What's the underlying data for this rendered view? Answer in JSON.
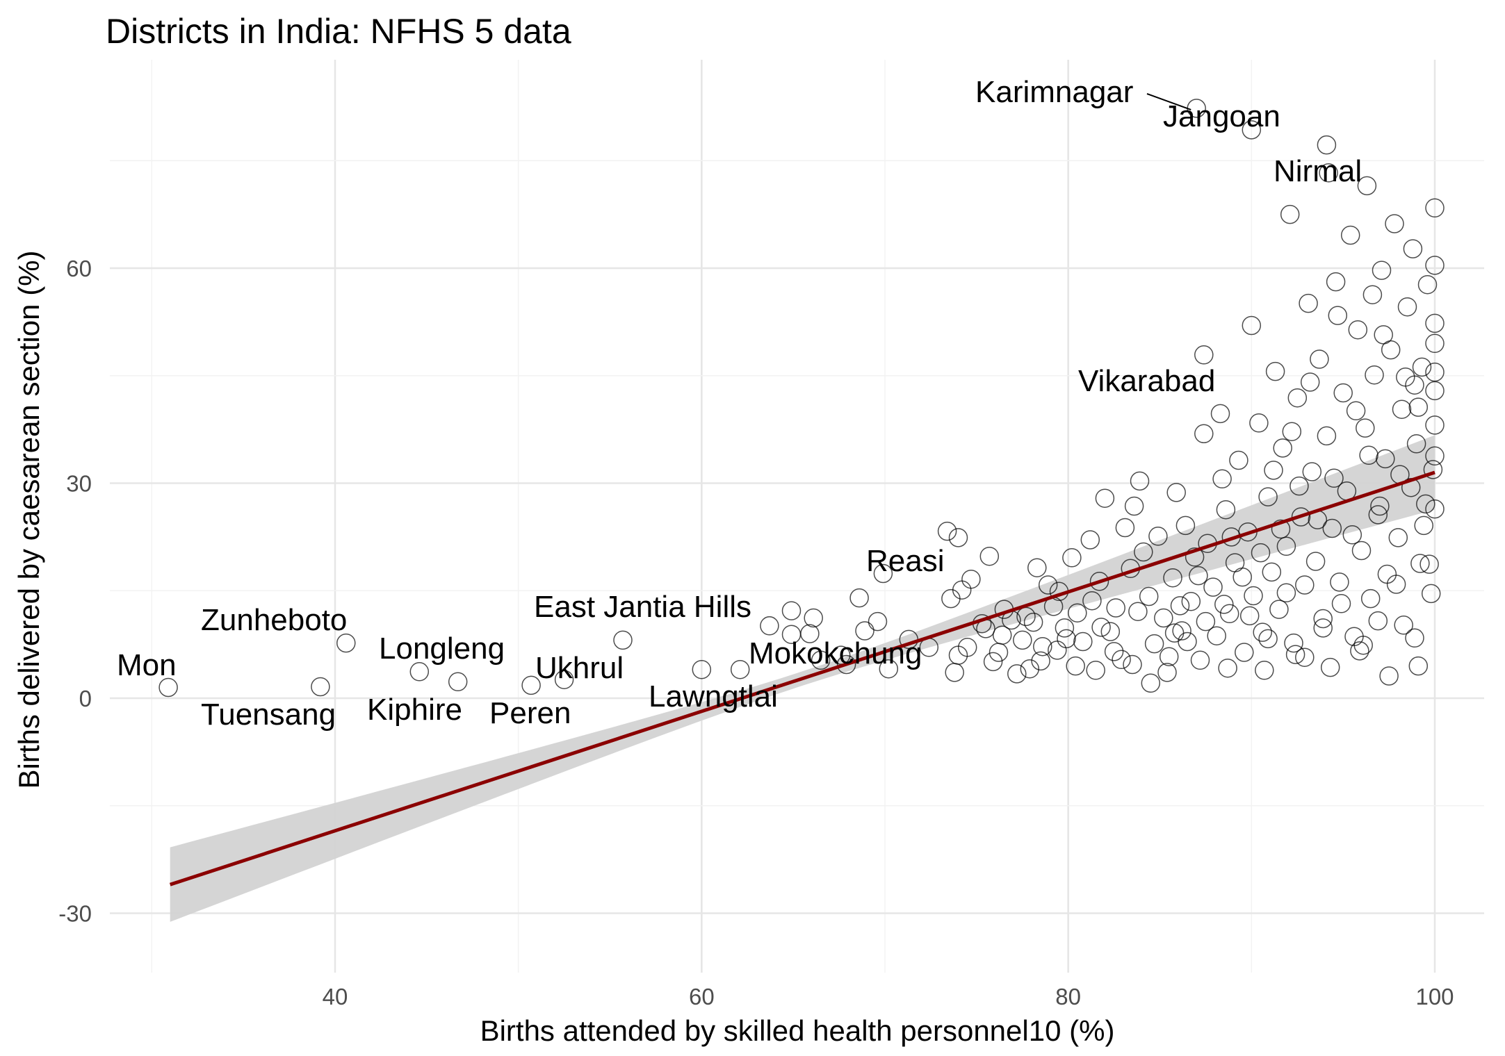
{
  "chart_data": {
    "type": "scatter",
    "title": "Districts in India: NFHS 5 data",
    "xlabel": "Births attended by skilled health personnel10 (%)",
    "ylabel": "Births delivered by caesarean section (%)",
    "xlim": [
      26,
      106
    ],
    "ylim": [
      -38,
      86
    ],
    "xticks": [
      40,
      60,
      80,
      100
    ],
    "yticks": [
      -30,
      0,
      30,
      60
    ],
    "grid": true,
    "colors": {
      "points": "#000000",
      "trend": "#8b0000",
      "band": "#d3d3d3",
      "grid_major": "#e6e6e6",
      "grid_minor": "#f2f2f2"
    },
    "fit": {
      "method": "linear",
      "x0": 31,
      "x1": 100,
      "y0": -26.0,
      "y1": 31.5,
      "ci_halfwidth_ends": 5.2,
      "ci_halfwidth_center": 1.0
    },
    "labeled_points": [
      {
        "name": "Mon",
        "x": 30.9,
        "y": 1.5
      },
      {
        "name": "Zunheboto",
        "x": 40.6,
        "y": 7.7
      },
      {
        "name": "Tuensang",
        "x": 39.2,
        "y": 1.6
      },
      {
        "name": "Longleng",
        "x": 44.6,
        "y": 3.7
      },
      {
        "name": "Kiphire",
        "x": 46.7,
        "y": 2.3
      },
      {
        "name": "East Jantia Hills",
        "x": 55.7,
        "y": 8.1
      },
      {
        "name": "Ukhrul",
        "x": 52.5,
        "y": 2.6
      },
      {
        "name": "Peren",
        "x": 50.7,
        "y": 1.8
      },
      {
        "name": "Lawngtlai",
        "x": 60.0,
        "y": 4.0
      },
      {
        "name": "Mokokchung",
        "x": 70.2,
        "y": 4.1
      },
      {
        "name": "Reasi",
        "x": 69.9,
        "y": 17.4
      },
      {
        "name": "Vikarabad",
        "x": 87.4,
        "y": 47.9
      },
      {
        "name": "Karimnagar",
        "x": 87.0,
        "y": 82.3
      },
      {
        "name": "Jangoan",
        "x": 90.0,
        "y": 79.3
      },
      {
        "name": "Nirmal",
        "x": 94.1,
        "y": 77.2
      }
    ],
    "points": [
      [
        64.9,
        12.2
      ],
      [
        66.1,
        11.2
      ],
      [
        62.1,
        4.0
      ],
      [
        64.9,
        8.9
      ],
      [
        65.9,
        9.0
      ],
      [
        67.6,
        6.0
      ],
      [
        67.9,
        4.7
      ],
      [
        68.6,
        14.0
      ],
      [
        73.4,
        23.3
      ],
      [
        73.6,
        13.9
      ],
      [
        74.0,
        22.4
      ],
      [
        74.2,
        15.1
      ],
      [
        74.7,
        16.6
      ],
      [
        75.7,
        19.8
      ],
      [
        75.3,
        10.4
      ],
      [
        73.8,
        3.6
      ],
      [
        74.0,
        6.0
      ],
      [
        68.9,
        9.4
      ],
      [
        69.6,
        10.7
      ],
      [
        71.3,
        8.2
      ],
      [
        72.4,
        7.1
      ],
      [
        63.7,
        10.1
      ],
      [
        66.5,
        5.3
      ],
      [
        76.9,
        10.9
      ],
      [
        75.9,
        5.1
      ],
      [
        76.4,
        8.8
      ],
      [
        77.2,
        3.4
      ],
      [
        77.7,
        11.4
      ],
      [
        77.9,
        4.1
      ],
      [
        78.3,
        18.2
      ],
      [
        78.6,
        7.2
      ],
      [
        78.9,
        15.8
      ],
      [
        79.2,
        12.8
      ],
      [
        79.4,
        6.7
      ],
      [
        79.8,
        9.8
      ],
      [
        80.2,
        19.6
      ],
      [
        80.4,
        4.5
      ],
      [
        80.8,
        7.9
      ],
      [
        81.2,
        22.1
      ],
      [
        81.3,
        13.6
      ],
      [
        81.7,
        16.3
      ],
      [
        82.0,
        27.9
      ],
      [
        82.3,
        9.3
      ],
      [
        82.6,
        12.6
      ],
      [
        82.9,
        5.4
      ],
      [
        83.1,
        23.8
      ],
      [
        83.4,
        18.1
      ],
      [
        83.6,
        26.8
      ],
      [
        83.9,
        30.3
      ],
      [
        84.1,
        20.4
      ],
      [
        84.4,
        14.2
      ],
      [
        84.7,
        7.6
      ],
      [
        84.9,
        22.6
      ],
      [
        85.2,
        11.2
      ],
      [
        85.4,
        3.6
      ],
      [
        85.7,
        16.8
      ],
      [
        85.9,
        28.7
      ],
      [
        86.2,
        9.4
      ],
      [
        86.4,
        24.1
      ],
      [
        86.7,
        13.5
      ],
      [
        86.9,
        19.7
      ],
      [
        87.2,
        5.3
      ],
      [
        87.4,
        36.9
      ],
      [
        87.6,
        21.6
      ],
      [
        87.9,
        15.5
      ],
      [
        88.1,
        8.7
      ],
      [
        88.3,
        39.7
      ],
      [
        88.6,
        26.3
      ],
      [
        88.8,
        11.8
      ],
      [
        89.1,
        18.9
      ],
      [
        89.3,
        33.2
      ],
      [
        89.6,
        6.4
      ],
      [
        89.8,
        23.2
      ],
      [
        90.0,
        52.0
      ],
      [
        90.1,
        14.3
      ],
      [
        90.4,
        38.4
      ],
      [
        90.6,
        9.2
      ],
      [
        90.9,
        28.1
      ],
      [
        91.1,
        17.6
      ],
      [
        91.3,
        45.6
      ],
      [
        91.5,
        12.4
      ],
      [
        91.7,
        34.9
      ],
      [
        91.9,
        21.2
      ],
      [
        92.1,
        67.5
      ],
      [
        92.3,
        7.7
      ],
      [
        92.5,
        41.9
      ],
      [
        92.7,
        25.3
      ],
      [
        92.9,
        15.8
      ],
      [
        93.1,
        55.1
      ],
      [
        93.3,
        31.6
      ],
      [
        93.5,
        19.1
      ],
      [
        93.7,
        47.3
      ],
      [
        93.9,
        11.1
      ],
      [
        94.1,
        36.6
      ],
      [
        94.2,
        73.3
      ],
      [
        94.4,
        23.7
      ],
      [
        94.6,
        58.1
      ],
      [
        94.8,
        16.2
      ],
      [
        95.0,
        42.6
      ],
      [
        95.2,
        28.9
      ],
      [
        95.4,
        64.6
      ],
      [
        95.6,
        8.6
      ],
      [
        95.8,
        51.4
      ],
      [
        96.0,
        20.6
      ],
      [
        96.2,
        37.7
      ],
      [
        96.3,
        71.5
      ],
      [
        96.5,
        13.9
      ],
      [
        96.7,
        45.1
      ],
      [
        96.9,
        25.6
      ],
      [
        97.1,
        59.7
      ],
      [
        97.3,
        33.4
      ],
      [
        97.4,
        17.3
      ],
      [
        97.6,
        48.6
      ],
      [
        97.8,
        66.2
      ],
      [
        98.0,
        22.4
      ],
      [
        98.2,
        40.3
      ],
      [
        98.3,
        10.2
      ],
      [
        98.5,
        54.6
      ],
      [
        98.7,
        29.4
      ],
      [
        98.8,
        62.7
      ],
      [
        99.0,
        35.5
      ],
      [
        99.2,
        18.8
      ],
      [
        99.3,
        46.2
      ],
      [
        99.5,
        27.1
      ],
      [
        99.6,
        57.7
      ],
      [
        99.8,
        14.6
      ],
      [
        99.9,
        31.9
      ],
      [
        100.0,
        42.9
      ],
      [
        100.0,
        49.5
      ],
      [
        100.0,
        38.1
      ],
      [
        100.0,
        52.3
      ],
      [
        100.0,
        26.4
      ],
      [
        100.0,
        45.5
      ],
      [
        100.0,
        60.4
      ],
      [
        100.0,
        33.8
      ],
      [
        100.0,
        68.4
      ],
      [
        99.4,
        24.1
      ],
      [
        98.9,
        43.7
      ],
      [
        98.1,
        31.2
      ],
      [
        97.0,
        26.8
      ],
      [
        96.4,
        33.9
      ],
      [
        95.5,
        22.8
      ],
      [
        94.5,
        30.7
      ],
      [
        93.6,
        24.9
      ],
      [
        92.6,
        29.6
      ],
      [
        91.6,
        23.6
      ],
      [
        90.5,
        20.3
      ],
      [
        89.5,
        16.9
      ],
      [
        88.5,
        13.1
      ],
      [
        87.5,
        10.7
      ],
      [
        86.5,
        7.9
      ],
      [
        85.5,
        5.8
      ],
      [
        84.5,
        2.1
      ],
      [
        83.5,
        4.7
      ],
      [
        82.5,
        6.5
      ],
      [
        81.5,
        3.9
      ],
      [
        80.5,
        11.9
      ],
      [
        79.5,
        14.9
      ],
      [
        78.5,
        5.2
      ],
      [
        77.5,
        8.1
      ],
      [
        76.5,
        12.4
      ],
      [
        75.5,
        9.7
      ],
      [
        74.5,
        7.1
      ],
      [
        86.1,
        12.9
      ],
      [
        87.1,
        17.1
      ],
      [
        88.9,
        22.5
      ],
      [
        89.9,
        11.5
      ],
      [
        90.9,
        8.3
      ],
      [
        91.9,
        14.7
      ],
      [
        92.9,
        5.7
      ],
      [
        93.9,
        9.8
      ],
      [
        94.9,
        13.2
      ],
      [
        95.9,
        6.6
      ],
      [
        96.9,
        10.8
      ],
      [
        97.9,
        15.9
      ],
      [
        98.9,
        8.4
      ],
      [
        99.7,
        18.7
      ],
      [
        99.1,
        4.5
      ],
      [
        97.5,
        3.1
      ],
      [
        96.1,
        7.4
      ],
      [
        94.3,
        4.3
      ],
      [
        92.4,
        6.1
      ],
      [
        90.7,
        3.9
      ],
      [
        88.7,
        4.2
      ],
      [
        85.8,
        9.1
      ],
      [
        83.8,
        12.1
      ],
      [
        81.8,
        9.9
      ],
      [
        79.9,
        8.3
      ],
      [
        78.1,
        10.6
      ],
      [
        76.2,
        6.4
      ],
      [
        91.2,
        31.8
      ],
      [
        92.2,
        37.2
      ],
      [
        93.2,
        44.1
      ],
      [
        94.7,
        53.4
      ],
      [
        95.7,
        40.1
      ],
      [
        96.6,
        56.3
      ],
      [
        97.2,
        50.7
      ],
      [
        98.4,
        44.8
      ],
      [
        99.1,
        40.6
      ],
      [
        88.4,
        30.6
      ]
    ]
  }
}
